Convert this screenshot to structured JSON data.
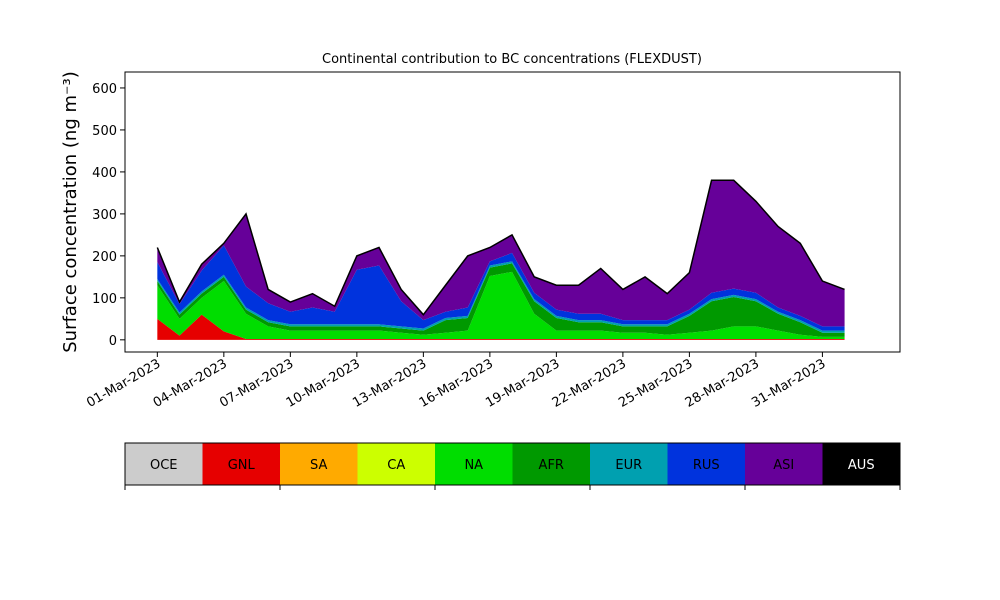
{
  "chart_data": {
    "type": "stacked-area",
    "title": "Continental contribution to BC concentrations (FLEXDUST)",
    "ylabel": "Surface concentration (ng m⁻³)",
    "x": [
      "2023-03-01",
      "2023-03-02",
      "2023-03-03",
      "2023-03-04",
      "2023-03-05",
      "2023-03-06",
      "2023-03-07",
      "2023-03-08",
      "2023-03-09",
      "2023-03-10",
      "2023-03-11",
      "2023-03-12",
      "2023-03-13",
      "2023-03-14",
      "2023-03-15",
      "2023-03-16",
      "2023-03-17",
      "2023-03-18",
      "2023-03-19",
      "2023-03-20",
      "2023-03-21",
      "2023-03-22",
      "2023-03-23",
      "2023-03-24",
      "2023-03-25",
      "2023-03-26",
      "2023-03-27",
      "2023-03-28",
      "2023-03-29",
      "2023-03-30",
      "2023-03-31",
      "2023-04-01"
    ],
    "xlim": [
      "2023-02-27T13:00Z",
      "2023-04-03T12:00Z"
    ],
    "xticks": [
      {
        "value": "2023-03-01",
        "label": "01-Mar-2023"
      },
      {
        "value": "2023-03-04",
        "label": "04-Mar-2023"
      },
      {
        "value": "2023-03-07",
        "label": "07-Mar-2023"
      },
      {
        "value": "2023-03-10",
        "label": "10-Mar-2023"
      },
      {
        "value": "2023-03-13",
        "label": "13-Mar-2023"
      },
      {
        "value": "2023-03-16",
        "label": "16-Mar-2023"
      },
      {
        "value": "2023-03-19",
        "label": "19-Mar-2023"
      },
      {
        "value": "2023-03-22",
        "label": "22-Mar-2023"
      },
      {
        "value": "2023-03-25",
        "label": "25-Mar-2023"
      },
      {
        "value": "2023-03-28",
        "label": "28-Mar-2023"
      },
      {
        "value": "2023-03-31",
        "label": "31-Mar-2023"
      }
    ],
    "ylim": [
      -29,
      638
    ],
    "yticks": [
      0,
      100,
      200,
      300,
      400,
      500,
      600
    ],
    "series": [
      {
        "name": "OCE",
        "color": "#cccccc",
        "values": [
          0,
          0,
          0,
          0,
          0,
          0,
          0,
          0,
          0,
          0,
          0,
          0,
          0,
          0,
          0,
          0,
          0,
          0,
          0,
          0,
          0,
          0,
          0,
          0,
          0,
          0,
          0,
          0,
          0,
          0,
          0,
          0
        ]
      },
      {
        "name": "GNL",
        "color": "#e60000",
        "values": [
          50,
          10,
          60,
          20,
          2,
          2,
          2,
          2,
          2,
          2,
          2,
          2,
          2,
          2,
          2,
          2,
          2,
          2,
          2,
          2,
          2,
          2,
          2,
          2,
          2,
          2,
          2,
          2,
          2,
          2,
          2,
          2
        ]
      },
      {
        "name": "SA",
        "color": "#ffaa00",
        "values": [
          0,
          0,
          0,
          0,
          0,
          0,
          0,
          0,
          0,
          0,
          0,
          0,
          0,
          0,
          0,
          0,
          0,
          0,
          0,
          0,
          0,
          0,
          0,
          0,
          0,
          0,
          0,
          0,
          0,
          0,
          0,
          0
        ]
      },
      {
        "name": "CA",
        "color": "#ccff00",
        "values": [
          0,
          0,
          0,
          0,
          0,
          0,
          0,
          0,
          0,
          0,
          0,
          0,
          0,
          0,
          0,
          0,
          0,
          0,
          0,
          0,
          0,
          0,
          0,
          0,
          0,
          0,
          0,
          0,
          0,
          0,
          0,
          0
        ]
      },
      {
        "name": "NA",
        "color": "#00dd00",
        "values": [
          80,
          40,
          40,
          120,
          60,
          30,
          20,
          20,
          20,
          20,
          20,
          15,
          10,
          15,
          20,
          150,
          160,
          60,
          20,
          20,
          20,
          15,
          15,
          10,
          15,
          20,
          30,
          30,
          20,
          10,
          5,
          5
        ]
      },
      {
        "name": "AFR",
        "color": "#009900",
        "values": [
          10,
          10,
          10,
          10,
          10,
          10,
          10,
          10,
          10,
          10,
          10,
          10,
          10,
          30,
          30,
          20,
          20,
          30,
          30,
          20,
          20,
          15,
          15,
          20,
          40,
          70,
          70,
          60,
          40,
          30,
          10,
          10
        ]
      },
      {
        "name": "EUR",
        "color": "#00a0b0",
        "values": [
          5,
          5,
          5,
          5,
          5,
          5,
          5,
          5,
          5,
          5,
          5,
          5,
          5,
          5,
          5,
          5,
          5,
          5,
          5,
          5,
          5,
          5,
          5,
          5,
          5,
          5,
          5,
          5,
          5,
          5,
          5,
          5
        ]
      },
      {
        "name": "RUS",
        "color": "#0033dd",
        "values": [
          40,
          20,
          50,
          70,
          50,
          40,
          30,
          40,
          30,
          130,
          140,
          60,
          20,
          15,
          20,
          10,
          20,
          15,
          15,
          15,
          15,
          10,
          10,
          10,
          10,
          15,
          15,
          15,
          10,
          10,
          10,
          10
        ]
      },
      {
        "name": "ASI",
        "color": "#660099",
        "values": [
          35,
          5,
          15,
          5,
          173,
          33,
          23,
          33,
          13,
          33,
          43,
          28,
          13,
          63,
          123,
          33,
          43,
          38,
          58,
          68,
          108,
          73,
          103,
          63,
          88,
          268,
          258,
          218,
          193,
          173,
          108,
          88
        ]
      },
      {
        "name": "AUS",
        "color": "#000000",
        "values": [
          0,
          0,
          0,
          0,
          0,
          0,
          0,
          0,
          0,
          0,
          0,
          0,
          0,
          0,
          0,
          0,
          0,
          0,
          0,
          0,
          0,
          0,
          0,
          0,
          0,
          0,
          0,
          0,
          0,
          0,
          0,
          0
        ]
      }
    ]
  }
}
